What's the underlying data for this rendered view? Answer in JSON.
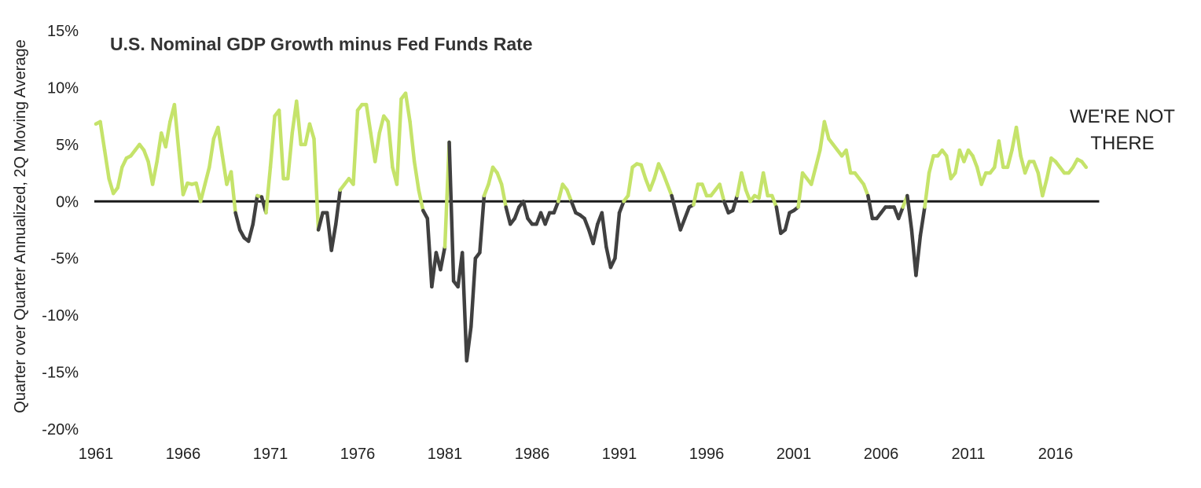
{
  "chart_data": {
    "type": "line",
    "title": "U.S. Nominal GDP Growth minus Fed Funds Rate",
    "ylabel": "Quarter over Quarter Annualized, 2Q Moving Average",
    "xlabel": "",
    "xlim": [
      1961,
      2019
    ],
    "ylim": [
      -20,
      15
    ],
    "x_ticks": [
      "1961",
      "1966",
      "1971",
      "1976",
      "1981",
      "1986",
      "1991",
      "1996",
      "2001",
      "2006",
      "2011",
      "2016"
    ],
    "y_ticks": [
      "15%",
      "10%",
      "5%",
      "0%",
      "-5%",
      "-10%",
      "-15%",
      "-20%"
    ],
    "annotation": [
      "WE'RE NOT",
      "THERE"
    ],
    "colors": {
      "positive": "#c5e36a",
      "negative": "#404040",
      "zero_line": "#1a1a1a"
    },
    "series": [
      {
        "unit": "%",
        "x": [
          1961.0,
          1961.25,
          1961.5,
          1961.75,
          1962.0,
          1962.25,
          1962.5,
          1962.75,
          1963.0,
          1963.25,
          1963.5,
          1963.75,
          1964.0,
          1964.25,
          1964.5,
          1964.75,
          1965.0,
          1965.25,
          1965.5,
          1965.75,
          1966.0,
          1966.25,
          1966.5,
          1966.75,
          1967.0,
          1967.25,
          1967.5,
          1967.75,
          1968.0,
          1968.25,
          1968.5,
          1968.75,
          1969.0,
          1969.25,
          1969.5,
          1969.75,
          1970.0,
          1970.25,
          1970.5,
          1970.75,
          1971.0,
          1971.25,
          1971.5,
          1971.75,
          1972.0,
          1972.25,
          1972.5,
          1972.75,
          1973.0,
          1973.25,
          1973.5,
          1973.75,
          1974.0,
          1974.25,
          1974.5,
          1974.75,
          1975.0,
          1975.25,
          1975.5,
          1975.75,
          1976.0,
          1976.25,
          1976.5,
          1976.75,
          1977.0,
          1977.25,
          1977.5,
          1977.75,
          1978.0,
          1978.25,
          1978.5,
          1978.75,
          1979.0,
          1979.25,
          1979.5,
          1979.75,
          1980.0,
          1980.25,
          1980.5,
          1980.75,
          1981.0,
          1981.25,
          1981.5,
          1981.75,
          1982.0,
          1982.25,
          1982.5,
          1982.75,
          1983.0,
          1983.25,
          1983.5,
          1983.75,
          1984.0,
          1984.25,
          1984.5,
          1984.75,
          1985.0,
          1985.25,
          1985.5,
          1985.75,
          1986.0,
          1986.25,
          1986.5,
          1986.75,
          1987.0,
          1987.25,
          1987.5,
          1987.75,
          1988.0,
          1988.25,
          1988.5,
          1988.75,
          1989.0,
          1989.25,
          1989.5,
          1989.75,
          1990.0,
          1990.25,
          1990.5,
          1990.75,
          1991.0,
          1991.25,
          1991.5,
          1991.75,
          1992.0,
          1992.25,
          1992.5,
          1992.75,
          1993.0,
          1993.25,
          1993.5,
          1993.75,
          1994.0,
          1994.25,
          1994.5,
          1994.75,
          1995.0,
          1995.25,
          1995.5,
          1995.75,
          1996.0,
          1996.25,
          1996.5,
          1996.75,
          1997.0,
          1997.25,
          1997.5,
          1997.75,
          1998.0,
          1998.25,
          1998.5,
          1998.75,
          1999.0,
          1999.25,
          1999.5,
          1999.75,
          2000.0,
          2000.25,
          2000.5,
          2000.75,
          2001.0,
          2001.25,
          2001.5,
          2001.75,
          2002.0,
          2002.25,
          2002.5,
          2002.75,
          2003.0,
          2003.25,
          2003.5,
          2003.75,
          2004.0,
          2004.25,
          2004.5,
          2004.75,
          2005.0,
          2005.25,
          2005.5,
          2005.75,
          2006.0,
          2006.25,
          2006.5,
          2006.75,
          2007.0,
          2007.25,
          2007.5,
          2007.75,
          2008.0,
          2008.25,
          2008.5,
          2008.75,
          2009.0,
          2009.25,
          2009.5,
          2009.75,
          2010.0,
          2010.25,
          2010.5,
          2010.75,
          2011.0,
          2011.25,
          2011.5,
          2011.75,
          2012.0,
          2012.25,
          2012.5,
          2012.75,
          2013.0,
          2013.25,
          2013.5,
          2013.75,
          2014.0,
          2014.25,
          2014.5,
          2014.75,
          2015.0,
          2015.25,
          2015.5,
          2015.75,
          2016.0,
          2016.25,
          2016.5,
          2016.75,
          2017.0,
          2017.25,
          2017.5,
          2017.75
        ],
        "values": [
          6.8,
          7.0,
          4.5,
          2.0,
          0.7,
          1.2,
          3.0,
          3.8,
          4.0,
          4.5,
          5.0,
          4.5,
          3.5,
          1.5,
          3.5,
          6.0,
          4.8,
          7.0,
          8.5,
          4.5,
          0.6,
          1.6,
          1.5,
          1.6,
          0.0,
          1.5,
          3.0,
          5.5,
          6.5,
          4.0,
          1.5,
          2.6,
          -1.0,
          -2.5,
          -3.2,
          -3.5,
          -2.0,
          0.5,
          0.4,
          -1.0,
          3.0,
          7.5,
          8.0,
          2.0,
          2.0,
          6.0,
          8.8,
          5.0,
          5.0,
          6.8,
          5.5,
          -2.5,
          -1.0,
          -1.0,
          -4.3,
          -2.0,
          1.0,
          1.5,
          2.0,
          1.5,
          8.0,
          8.5,
          8.5,
          6.0,
          3.5,
          6.0,
          7.5,
          7.0,
          3.0,
          1.5,
          9.0,
          9.5,
          7.0,
          3.5,
          1.0,
          -0.8,
          -1.5,
          -7.5,
          -4.5,
          -6.0,
          -4.0,
          5.2,
          -7.0,
          -7.5,
          -4.5,
          -14.0,
          -11.0,
          -5.0,
          -4.5,
          0.5,
          1.5,
          3.0,
          2.5,
          1.5,
          -0.5,
          -2.0,
          -1.5,
          -0.5,
          0.0,
          -1.5,
          -2.0,
          -2.0,
          -1.0,
          -2.0,
          -1.0,
          -1.0,
          0.0,
          1.5,
          1.0,
          0.0,
          -1.0,
          -1.2,
          -1.5,
          -2.5,
          -3.7,
          -2.0,
          -1.0,
          -4.0,
          -5.8,
          -5.0,
          -1.0,
          0.0,
          0.5,
          3.0,
          3.3,
          3.2,
          2.0,
          1.0,
          2.0,
          3.3,
          2.5,
          1.5,
          0.5,
          -1.0,
          -2.5,
          -1.5,
          -0.5,
          -0.3,
          1.5,
          1.5,
          0.5,
          0.5,
          1.0,
          1.5,
          0.0,
          -1.0,
          -0.8,
          0.5,
          2.5,
          1.0,
          0.0,
          0.5,
          0.3,
          2.5,
          0.5,
          0.5,
          -0.5,
          -2.8,
          -2.5,
          -1.0,
          -0.8,
          -0.5,
          2.5,
          2.0,
          1.5,
          3.0,
          4.5,
          7.0,
          5.5,
          5.0,
          4.5,
          4.0,
          4.5,
          2.5,
          2.5,
          2.0,
          1.5,
          0.5,
          -1.5,
          -1.5,
          -1.0,
          -0.5,
          -0.5,
          -0.5,
          -1.5,
          -0.5,
          0.5,
          -2.5,
          -6.5,
          -3.0,
          -0.5,
          2.5,
          4.0,
          4.0,
          4.5,
          4.0,
          2.0,
          2.5,
          4.5,
          3.5,
          4.5,
          4.0,
          3.0,
          1.5,
          2.5,
          2.5,
          3.0,
          5.3,
          3.0,
          3.0,
          4.5,
          6.5,
          4.0,
          2.5,
          3.5,
          3.5,
          2.5,
          0.5,
          2.0,
          3.8,
          3.5,
          3.0,
          2.5,
          2.5,
          3.0,
          3.7,
          3.5,
          3.0
        ]
      }
    ]
  }
}
